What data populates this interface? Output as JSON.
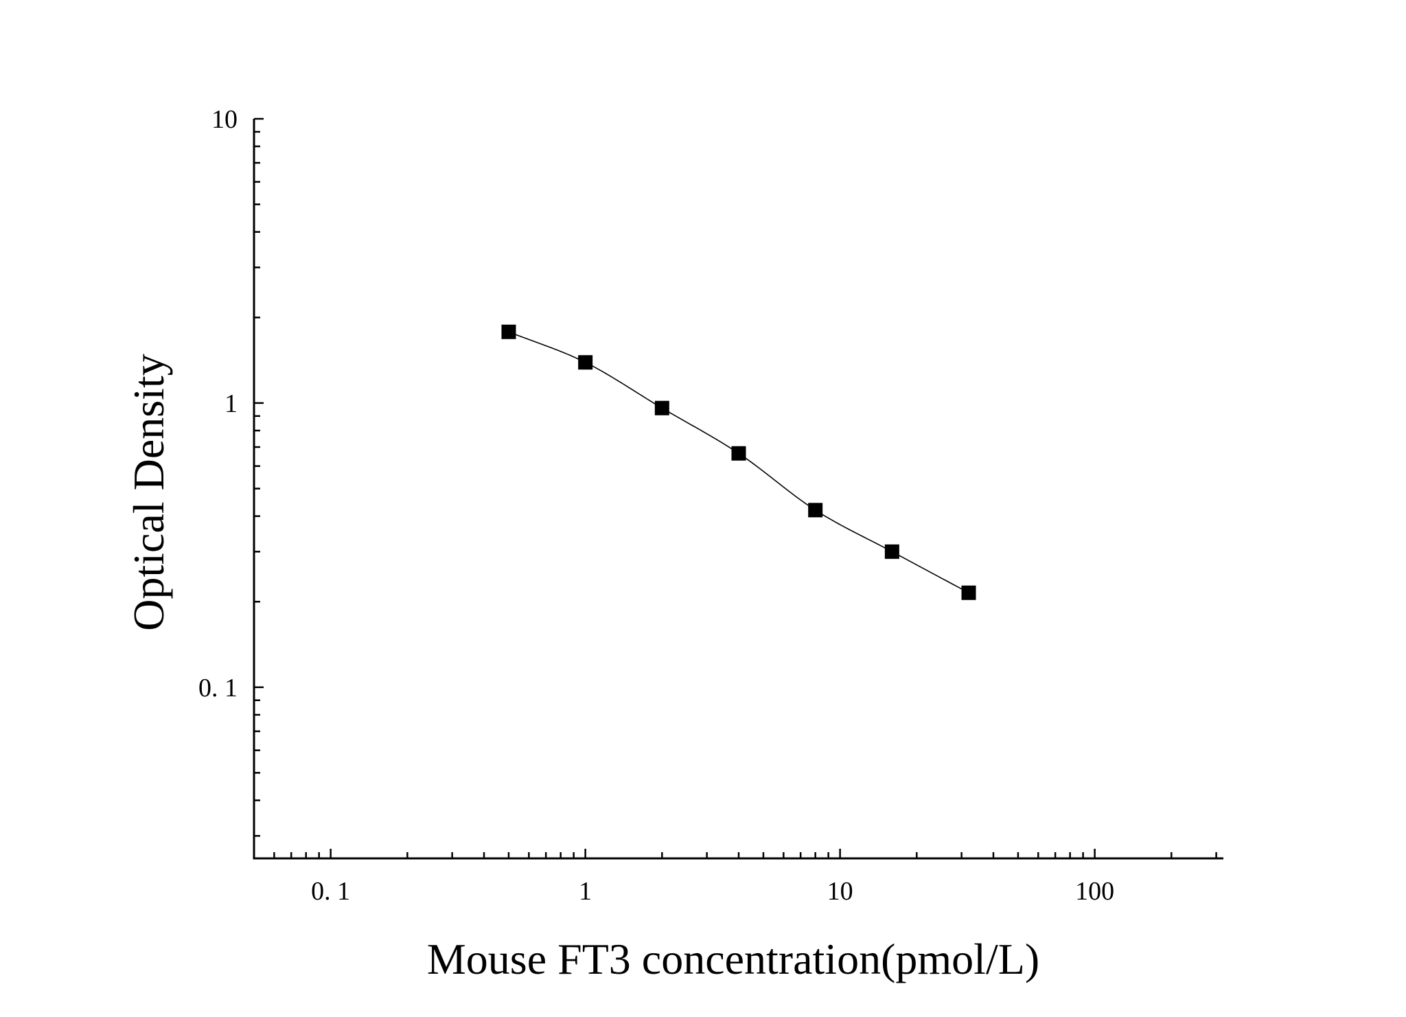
{
  "chart_data": {
    "type": "scatter",
    "title": "",
    "xlabel": "Mouse FT3 concentration(pmol/L)",
    "ylabel": "Optical Density",
    "x_scale": "log",
    "y_scale": "log",
    "xlim": [
      0.05,
      320
    ],
    "ylim": [
      0.025,
      10
    ],
    "grid": false,
    "legend": "none",
    "x_ticks": [
      {
        "value": 0.1,
        "label": "0. 1"
      },
      {
        "value": 1,
        "label": "1"
      },
      {
        "value": 10,
        "label": "10"
      },
      {
        "value": 100,
        "label": "100"
      }
    ],
    "y_ticks": [
      {
        "value": 0.1,
        "label": "0. 1"
      },
      {
        "value": 1,
        "label": "1"
      },
      {
        "value": 10,
        "label": "10"
      }
    ],
    "series": [
      {
        "x": [
          0.5,
          1,
          2,
          4,
          8,
          16,
          32
        ],
        "y": [
          1.78,
          1.39,
          0.96,
          0.665,
          0.42,
          0.3,
          0.215
        ],
        "marker": "square",
        "color": "#000000",
        "fit_curve": true
      }
    ]
  }
}
